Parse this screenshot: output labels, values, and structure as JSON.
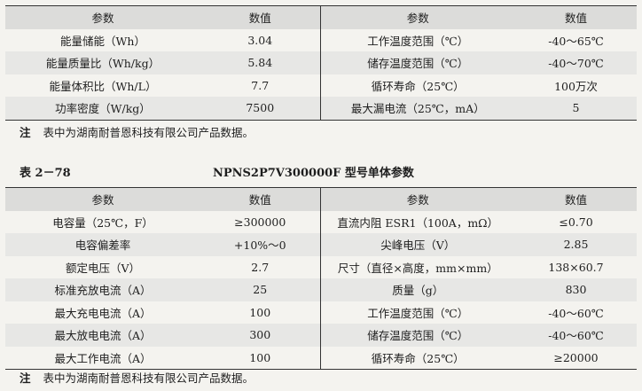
{
  "table1": {
    "headers": [
      "参数",
      "数值",
      "参数",
      "数值"
    ],
    "rows": [
      [
        "能量储能（Wh）",
        "3.04",
        "工作温度范围（℃）",
        "-40～65℃"
      ],
      [
        "能量质量比（Wh/kg）",
        "5.84",
        "储存温度范围（℃）",
        "-40～70℃"
      ],
      [
        "能量体积比（Wh/L）",
        "7.7",
        "循环寿命（25℃）",
        "100万次"
      ],
      [
        "功率密度（W/kg）",
        "7500",
        "最大漏电流（25℃，mA）",
        "5"
      ]
    ]
  },
  "note1": {
    "label": "注",
    "text": "表中为湖南耐普恩科技有限公司产品数据。"
  },
  "caption": {
    "number": "表 2－78",
    "title": "NPNS2P7V300000F 型号单体参数"
  },
  "table2": {
    "headers": [
      "参数",
      "数值",
      "参数",
      "数值"
    ],
    "rows": [
      [
        "电容量（25℃，F）",
        "≥300000",
        "直流内阻 ESR1（100A，mΩ）",
        "≤0.70"
      ],
      [
        "电容偏差率",
        "+10%～0",
        "尖峰电压（V）",
        "2.85"
      ],
      [
        "额定电压（V）",
        "2.7",
        "尺寸（直径×高度，mm×mm）",
        "138×60.7"
      ],
      [
        "标准充放电流（A）",
        "25",
        "质量（g）",
        "830"
      ],
      [
        "最大充电电流（A）",
        "100",
        "工作温度范围（℃）",
        "-40～60℃"
      ],
      [
        "最大放电电流（A）",
        "300",
        "储存温度范围（℃）",
        "-40～60℃"
      ],
      [
        "最大工作电流（A）",
        "100",
        "循环寿命（25℃）",
        "≥20000"
      ]
    ]
  },
  "note2": {
    "label": "注",
    "text": "表中为湖南耐普恩科技有限公司产品数据。"
  }
}
